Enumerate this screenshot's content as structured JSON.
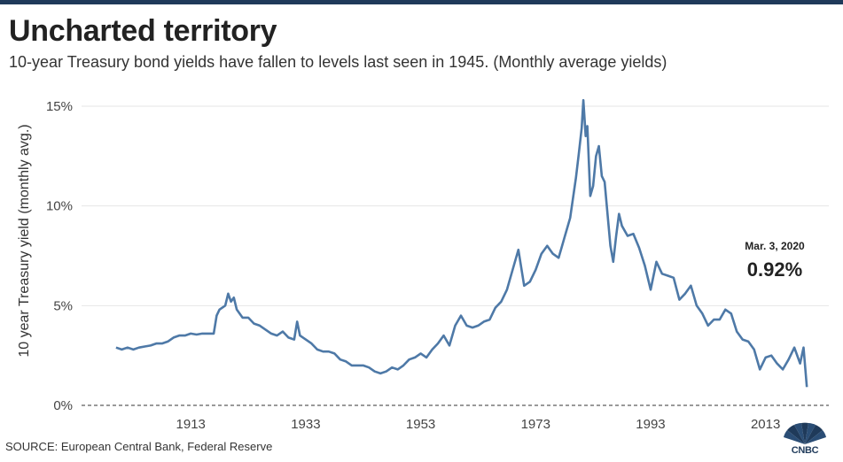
{
  "title": "Uncharted territory",
  "subtitle": "10-year Treasury bond yields have fallen to levels last seen in 1945. (Monthly average yields)",
  "source": "SOURCE: European Central Bank, Federal Reserve",
  "logo_text": "CNBC",
  "colors": {
    "line": "#4e79a7",
    "grid": "#e6e6e6",
    "text": "#222222",
    "topbar": "#1f3a5a"
  },
  "chart_data": {
    "type": "line",
    "title": "Uncharted territory",
    "ylabel": "10 year Treasury yield (monthly avg.)",
    "xlabel": "",
    "xlim": [
      1894,
      2024
    ],
    "ylim": [
      0,
      15
    ],
    "grid": true,
    "x_ticks": [
      1913,
      1933,
      1953,
      1973,
      1993,
      2013
    ],
    "x_tick_labels": [
      "1913",
      "1933",
      "1953",
      "1973",
      "1993",
      "2013"
    ],
    "y_ticks": [
      0,
      5,
      10,
      15
    ],
    "y_tick_labels": [
      "0%",
      "5%",
      "10%",
      "15%"
    ],
    "series": [
      {
        "name": "10-year Treasury yield",
        "x": [
          1900,
          1901,
          1902,
          1903,
          1904,
          1905,
          1906,
          1907,
          1908,
          1909,
          1910,
          1911,
          1912,
          1913,
          1914,
          1915,
          1916,
          1917,
          1917.5,
          1918,
          1919,
          1919.5,
          1920,
          1920.5,
          1921,
          1922,
          1923,
          1924,
          1925,
          1926,
          1927,
          1928,
          1929,
          1930,
          1931,
          1931.5,
          1932,
          1933,
          1934,
          1935,
          1936,
          1937,
          1938,
          1939,
          1940,
          1941,
          1942,
          1943,
          1944,
          1945,
          1946,
          1947,
          1948,
          1949,
          1950,
          1951,
          1952,
          1953,
          1954,
          1955,
          1956,
          1957,
          1958,
          1959,
          1960,
          1961,
          1962,
          1963,
          1964,
          1965,
          1966,
          1967,
          1968,
          1969,
          1970,
          1971,
          1972,
          1973,
          1974,
          1975,
          1976,
          1977,
          1978,
          1979,
          1980,
          1980.5,
          1981,
          1981.3,
          1981.7,
          1982,
          1982.5,
          1983,
          1983.5,
          1984,
          1984.5,
          1985,
          1986,
          1986.5,
          1987,
          1987.5,
          1988,
          1989,
          1990,
          1991,
          1992,
          1993,
          1994,
          1995,
          1996,
          1997,
          1998,
          1999,
          2000,
          2001,
          2002,
          2003,
          2004,
          2005,
          2006,
          2007,
          2008,
          2009,
          2010,
          2011,
          2012,
          2013,
          2014,
          2015,
          2016,
          2017,
          2018,
          2019,
          2019.6,
          2020.17
        ],
        "values": [
          2.9,
          2.8,
          2.9,
          2.8,
          2.9,
          2.95,
          3.0,
          3.1,
          3.1,
          3.2,
          3.4,
          3.5,
          3.5,
          3.6,
          3.55,
          3.6,
          3.6,
          3.6,
          4.5,
          4.8,
          5.0,
          5.6,
          5.2,
          5.4,
          4.8,
          4.4,
          4.4,
          4.1,
          4.0,
          3.8,
          3.6,
          3.5,
          3.7,
          3.4,
          3.3,
          4.2,
          3.5,
          3.3,
          3.1,
          2.8,
          2.7,
          2.7,
          2.6,
          2.3,
          2.2,
          2.0,
          2.0,
          2.0,
          1.9,
          1.7,
          1.6,
          1.7,
          1.9,
          1.8,
          2.0,
          2.3,
          2.4,
          2.6,
          2.4,
          2.8,
          3.1,
          3.5,
          3.0,
          4.0,
          4.5,
          4.0,
          3.9,
          4.0,
          4.2,
          4.3,
          4.9,
          5.2,
          5.8,
          6.8,
          7.8,
          6.0,
          6.2,
          6.8,
          7.6,
          8.0,
          7.6,
          7.4,
          8.4,
          9.4,
          11.4,
          12.6,
          13.9,
          15.3,
          13.5,
          14.0,
          10.5,
          11.0,
          12.5,
          13.0,
          11.5,
          11.2,
          8.0,
          7.2,
          8.5,
          9.6,
          9.0,
          8.5,
          8.6,
          7.9,
          7.0,
          5.8,
          7.2,
          6.6,
          6.5,
          6.4,
          5.3,
          5.6,
          6.0,
          5.0,
          4.6,
          4.0,
          4.3,
          4.3,
          4.8,
          4.6,
          3.7,
          3.3,
          3.2,
          2.8,
          1.8,
          2.4,
          2.5,
          2.1,
          1.8,
          2.3,
          2.9,
          2.1,
          2.9,
          0.92
        ]
      }
    ],
    "annotation": {
      "x": 2020.17,
      "y": 0.92,
      "date": "Mar. 3, 2020",
      "value": "0.92%"
    }
  }
}
